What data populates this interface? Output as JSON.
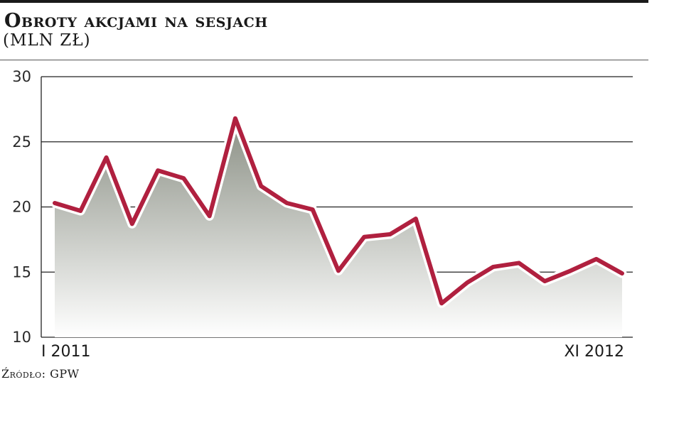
{
  "header": {
    "title": "Obroty akcjami na sesjach",
    "subtitle": "(MLN ZŁ)"
  },
  "footer": {
    "source": "Źródło: GPW"
  },
  "colors": {
    "line": "#b0203f",
    "area_top": "#8a8f84",
    "area_bottom": "#ffffff",
    "grid": "#222222"
  },
  "chart_data": {
    "type": "area",
    "title": "Obroty akcjami na sesjach",
    "ylabel": "(MLN ZŁ)",
    "ylim": [
      10,
      30
    ],
    "yticks": [
      10,
      15,
      20,
      25,
      30
    ],
    "x_tick_labels": [
      "I 2011",
      "XI 2012"
    ],
    "grid": true,
    "series": [
      {
        "values": [
          20.3,
          19.7,
          23.8,
          18.7,
          22.8,
          22.2,
          19.3,
          26.8,
          21.6,
          20.3,
          19.8,
          15.1,
          17.7,
          17.9,
          19.1,
          12.6,
          14.2,
          15.4,
          15.7,
          14.3,
          15.1,
          16.0,
          14.9
        ]
      }
    ]
  }
}
